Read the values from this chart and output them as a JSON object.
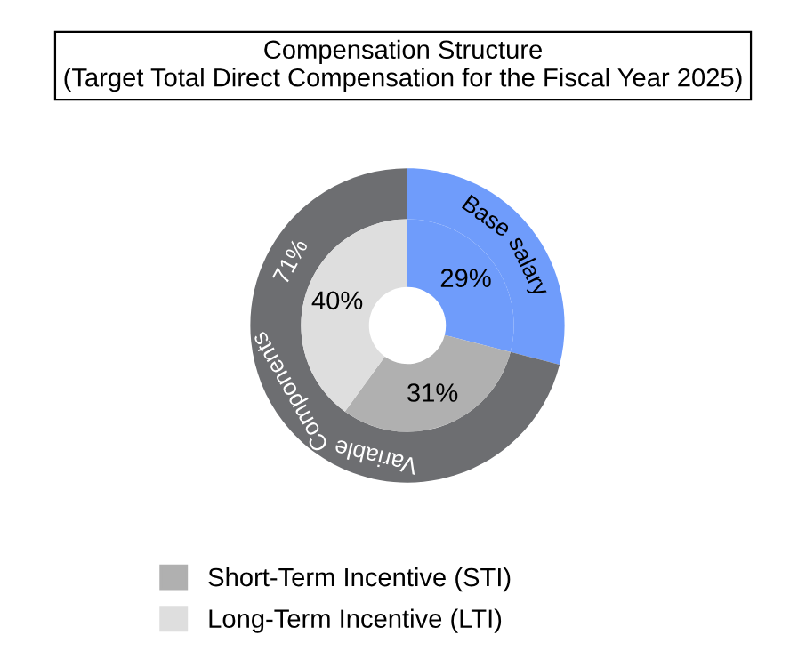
{
  "chart_data": {
    "type": "donut",
    "title": "Compensation Structure\n(Target Total Direct Compensation for the Fiscal Year 2025)",
    "legend": "bottom left",
    "categories": [
      "Base salary",
      "Variable Components",
      null,
      "Short-Term Incentive (STI)",
      "Long-Term Incentive (LTI)"
    ],
    "colors": [
      "#6f9cfb",
      "#6d6e71",
      "#6f9cfb",
      "#b0b0b0",
      "#dedede"
    ],
    "series": [
      {
        "values": [
          29,
          71,
          null,
          null,
          null
        ],
        "value_labels": [
          null,
          "71%",
          null,
          null,
          null
        ]
      },
      {
        "values": [
          null,
          null,
          29,
          31,
          40
        ],
        "value_labels": [
          null,
          null,
          "29%",
          "31%",
          "40%"
        ]
      }
    ]
  }
}
